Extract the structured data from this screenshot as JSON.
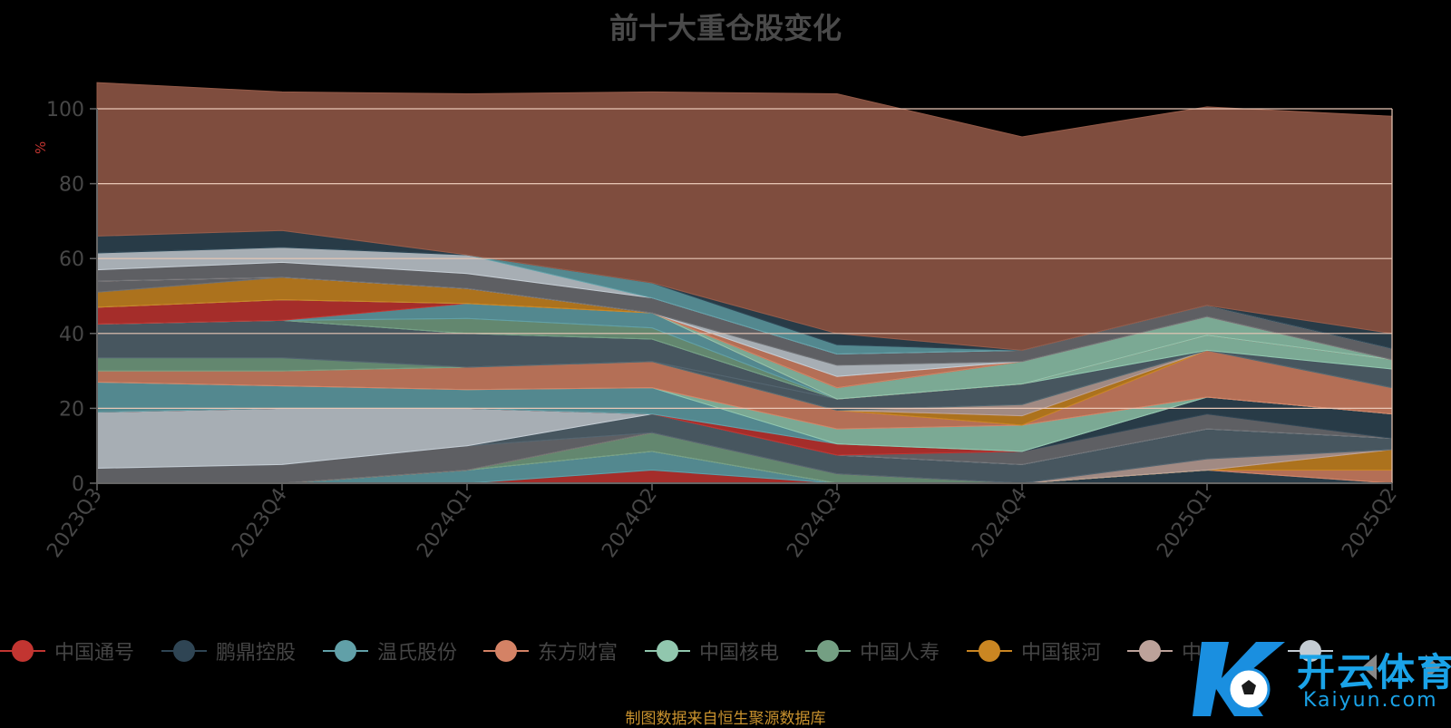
{
  "chart_data": {
    "type": "area",
    "title": "前十大重仓股变化",
    "ylabel": "%",
    "ylim": [
      0,
      100
    ],
    "yticks": [
      0,
      20,
      40,
      60,
      80,
      100
    ],
    "x": [
      "2023Q3",
      "2023Q4",
      "2024Q1",
      "2024Q2",
      "2024Q3",
      "2024Q4",
      "2025Q1",
      "2025Q2"
    ],
    "stacked": true,
    "grid": true,
    "legend_position": "bottom",
    "series": [
      {
        "name": "中国通号",
        "color": "#c23531",
        "values": [
          0,
          0,
          0,
          3.5,
          0,
          0,
          0,
          0
        ]
      },
      {
        "name": "鹏鼎控股",
        "color": "#2f4554",
        "values": [
          0,
          0,
          0,
          0,
          0,
          0,
          3.5,
          0
        ]
      },
      {
        "name": "温氏股份",
        "color": "#61a0a8",
        "values": [
          0,
          0,
          3.5,
          5,
          0,
          0,
          0,
          0
        ]
      },
      {
        "name": "东方财富",
        "color": "#d48265",
        "values": [
          0,
          0,
          0,
          0,
          0,
          0,
          0,
          3.5
        ]
      },
      {
        "name": "中国核电",
        "color": "#91c7ae",
        "values": [
          0,
          0,
          0,
          0,
          0,
          0,
          0,
          0
        ]
      },
      {
        "name": "中国人寿",
        "color": "#749f83",
        "values": [
          0,
          0,
          0,
          5,
          2.5,
          0,
          0,
          0
        ]
      },
      {
        "name": "中国银河",
        "color": "#ca8622",
        "values": [
          0,
          0,
          0,
          0,
          0,
          0,
          0,
          5.5
        ]
      },
      {
        "name": "中",
        "color": "#bda29a",
        "values": [
          0,
          0,
          0,
          0,
          0,
          0,
          3,
          0
        ]
      },
      {
        "name": "",
        "color": "#6e7074",
        "values": [
          4,
          5,
          6.5,
          0,
          0,
          0,
          0,
          0
        ]
      },
      {
        "name": "",
        "color": "#546570",
        "values": [
          0,
          0,
          0,
          5,
          5,
          5,
          8,
          3
        ]
      },
      {
        "name": "",
        "color": "#c4ccd3",
        "values": [
          15,
          15,
          10,
          0,
          0,
          0,
          0,
          0
        ]
      },
      {
        "name": "",
        "color": "#6e7074",
        "values": [
          0,
          0,
          0,
          0,
          0,
          3.5,
          4,
          0
        ]
      },
      {
        "name": "",
        "color": "#2f4554",
        "values": [
          0,
          0,
          0,
          0,
          0,
          0,
          4.5,
          6.5
        ]
      },
      {
        "name": "",
        "color": "#c23531",
        "values": [
          0,
          0,
          0,
          0,
          3,
          0,
          0,
          0
        ]
      },
      {
        "name": "",
        "color": "#61a0a8",
        "values": [
          8,
          6,
          5,
          7,
          0,
          0,
          0,
          0
        ]
      },
      {
        "name": "",
        "color": "#91c7ae",
        "values": [
          0,
          0,
          0,
          0,
          4,
          7,
          0,
          0
        ]
      },
      {
        "name": "",
        "color": "#d48265",
        "values": [
          3,
          4,
          6,
          7,
          5,
          0,
          12.5,
          7
        ]
      },
      {
        "name": "",
        "color": "#ca8622",
        "values": [
          0,
          0,
          0,
          0,
          0,
          2.5,
          0,
          0
        ]
      },
      {
        "name": "",
        "color": "#bda29a",
        "values": [
          0,
          0,
          0,
          0,
          0,
          3,
          0,
          0
        ]
      },
      {
        "name": "",
        "color": "#749f83",
        "values": [
          3.5,
          3.5,
          0,
          0,
          0,
          0,
          0,
          0
        ]
      },
      {
        "name": "",
        "color": "#546570",
        "values": [
          0,
          0,
          0,
          0,
          3,
          5.5,
          0,
          0
        ]
      },
      {
        "name": "",
        "color": "#546570",
        "values": [
          9,
          10,
          9,
          6,
          0,
          0,
          0,
          5
        ]
      },
      {
        "name": "",
        "color": "#91c7ae",
        "values": [
          0,
          0,
          0,
          0,
          0,
          0,
          4,
          2.5
        ]
      },
      {
        "name": "",
        "color": "#749f83",
        "values": [
          0,
          0,
          4,
          3,
          0,
          0,
          0,
          0
        ]
      },
      {
        "name": "",
        "color": "#61a0a8",
        "values": [
          0,
          0,
          4,
          4,
          0,
          0,
          0,
          0
        ]
      },
      {
        "name": "",
        "color": "#c23531",
        "values": [
          4.5,
          5.5,
          0,
          0,
          0,
          0,
          0,
          0
        ]
      },
      {
        "name": "",
        "color": "#91c7ae",
        "values": [
          0,
          0,
          0,
          0,
          3,
          6,
          5,
          0
        ]
      },
      {
        "name": "",
        "color": "#ca8622",
        "values": [
          4,
          6,
          4,
          0,
          0,
          0,
          0,
          0
        ]
      },
      {
        "name": "",
        "color": "#6e7074",
        "values": [
          3,
          0,
          0,
          0,
          0,
          0,
          0,
          0
        ]
      },
      {
        "name": "",
        "color": "#d48265",
        "values": [
          0,
          0,
          0,
          0,
          3,
          0,
          0,
          0
        ]
      },
      {
        "name": "",
        "color": "#c4ccd3",
        "values": [
          0,
          0,
          0,
          0,
          3,
          0,
          0,
          0
        ]
      },
      {
        "name": "",
        "color": "#6e7074",
        "values": [
          3,
          4,
          4,
          4,
          3,
          3,
          3,
          3
        ]
      },
      {
        "name": "",
        "color": "#c4ccd3",
        "values": [
          4.5,
          4,
          5,
          0,
          0,
          0,
          0,
          0
        ]
      },
      {
        "name": "",
        "color": "#61a0a8",
        "values": [
          0,
          0,
          0,
          4,
          2.5,
          0,
          0,
          0
        ]
      },
      {
        "name": "",
        "color": "#2f4554",
        "values": [
          4.5,
          4.5,
          0,
          0,
          3,
          0,
          0,
          4
        ]
      },
      {
        "name": "",
        "color": "#955b49",
        "values": [
          41,
          37,
          43,
          51,
          64,
          57,
          53,
          58
        ]
      }
    ]
  },
  "legend": [
    {
      "label": "中国通号",
      "color": "#c23531"
    },
    {
      "label": "鹏鼎控股",
      "color": "#2f4554"
    },
    {
      "label": "温氏股份",
      "color": "#61a0a8"
    },
    {
      "label": "东方财富",
      "color": "#d48265"
    },
    {
      "label": "中国核电",
      "color": "#91c7ae"
    },
    {
      "label": "中国人寿",
      "color": "#749f83"
    },
    {
      "label": "中国银河",
      "color": "#ca8622"
    },
    {
      "label": "中",
      "color": "#bda29a"
    },
    {
      "label": "",
      "color": "#c4ccd3"
    }
  ],
  "source_note": "制图数据来自恒生聚源数据库",
  "watermark": {
    "title": "开云体育",
    "subtitle": "Kaiyun.com"
  }
}
